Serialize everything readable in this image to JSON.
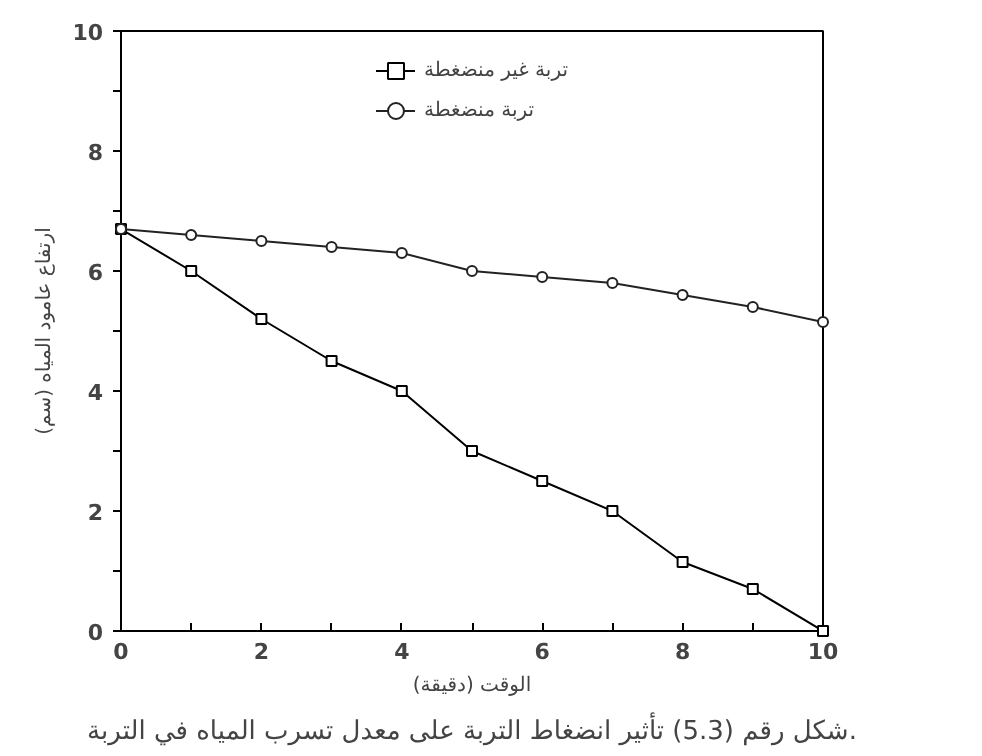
{
  "chart_data": {
    "type": "line",
    "xlabel": "الوقت (دقيقة)",
    "ylabel": "ارتفاع عامود المياه (سم)",
    "annotations": [
      "شكل رقم (5.3) تأثير انضغاط التربة على معدل تسرب المياه في التربة."
    ],
    "x": [
      0,
      1,
      2,
      3,
      4,
      5,
      6,
      7,
      8,
      9,
      10
    ],
    "series": [
      {
        "name": "تربة غير منضغطة",
        "color": "#000000",
        "marker": "square",
        "values": [
          6.7,
          6.0,
          5.2,
          4.5,
          4.0,
          3.0,
          2.5,
          2.0,
          1.15,
          0.7,
          0
        ]
      },
      {
        "name": "تربة منضغطة",
        "color": "#222222",
        "marker": "circle",
        "values": [
          6.7,
          6.6,
          6.5,
          6.4,
          6.3,
          6.0,
          5.9,
          5.8,
          5.6,
          5.4,
          5.15
        ]
      }
    ],
    "xlim": [
      0,
      10
    ],
    "ylim": [
      0,
      10
    ],
    "xticks": [
      0,
      {
        "value": 1,
        "label": null
      },
      2,
      {
        "value": 3,
        "label": null
      },
      4,
      {
        "value": 5,
        "label": null
      },
      6,
      {
        "value": 7,
        "label": null
      },
      8,
      {
        "value": 9,
        "label": null
      },
      10
    ],
    "yticks": [
      0,
      {
        "value": 1,
        "label": null
      },
      2,
      {
        "value": 3,
        "label": null
      },
      4,
      {
        "value": 5,
        "label": null
      },
      6,
      {
        "value": 7,
        "label": null
      },
      8,
      {
        "value": 9,
        "label": null
      },
      10
    ],
    "grid": false,
    "legend": "top",
    "line_style": "solid"
  }
}
